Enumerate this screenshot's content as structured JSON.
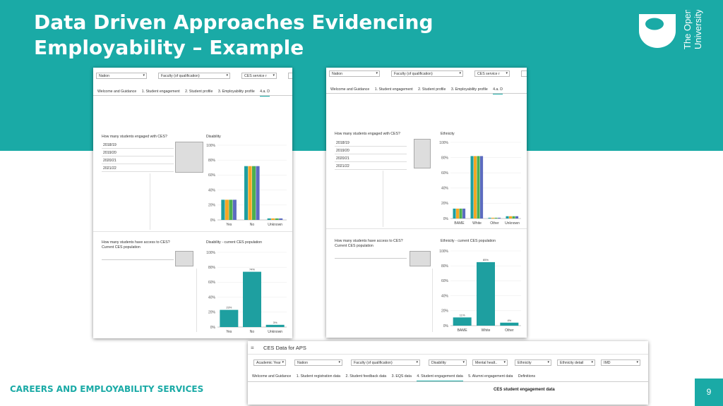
{
  "slide": {
    "title_line1": "Data Driven Approaches Evidencing",
    "title_line2": "Employability – Example",
    "logo_line1": "The Open",
    "logo_line2": "University",
    "footer": "CAREERS AND EMPLOYABILITY SERVICES",
    "page_number": "9",
    "colors": {
      "teal": "#1aaaa6",
      "bar_teal": "#1e9fa0",
      "bar_green": "#4caf50",
      "bar_orange": "#f5a623",
      "bar_blue": "#5c6bc0"
    }
  },
  "left_panel": {
    "filters": [
      "Nation",
      "Faculty (of qualification)",
      "CES service r"
    ],
    "tabs": [
      "Welcome and Guidance",
      "1. Student engagement",
      "2. Student profile",
      "3. Employability profile",
      "4.a. D"
    ],
    "engaged_title": "How many students engaged with CES?",
    "years": [
      "2018/19",
      "2019/20",
      "2020/21",
      "2021/22"
    ],
    "chart1_title": "Disability",
    "access_title1": "How many students have access to CES?",
    "access_title2": "Current CES population",
    "chart2_title": "Disability - current CES population"
  },
  "right_panel": {
    "filters": [
      "Nation",
      "Faculty (of qualification)",
      "CES service r"
    ],
    "tabs": [
      "Welcome and Guidance",
      "1. Student engagement",
      "2. Student profile",
      "3. Employability profile",
      "4.a. D"
    ],
    "engaged_title": "How many students engaged with CES?",
    "years": [
      "2018/19",
      "2019/20",
      "2020/21",
      "2021/22"
    ],
    "chart1_title": "Ethnicity",
    "access_title1": "How many students have access to CES?",
    "access_title2": "Current CES population",
    "chart2_title": "Ethnicity - current CES population"
  },
  "bottom_panel": {
    "app_title": "CES Data for APS",
    "filters": [
      "Academic Year",
      "Nation",
      "Faculty (of qualification)",
      "Disability",
      "Mental healt..",
      "Ethnicity",
      "Ethnicity detail",
      "IMD"
    ],
    "tabs": [
      "Welcome and Guidance",
      "1. Student registration data",
      "2. Student feedback data",
      "3. EQS data",
      "4. Student engagement data",
      "5. Alumni engagement data",
      "Definitions"
    ],
    "section_title": "CES student engagement data"
  },
  "chart_data": [
    {
      "type": "bar",
      "title": "Disability",
      "categories": [
        "Yes",
        "No",
        "Unknown"
      ],
      "series_colors": [
        "#1e9fa0",
        "#f5a623",
        "#4caf50",
        "#5c6bc0"
      ],
      "series": [
        {
          "values": [
            27,
            72,
            2
          ]
        },
        {
          "values": [
            27,
            72,
            2
          ]
        },
        {
          "values": [
            27,
            72,
            2
          ]
        },
        {
          "values": [
            27,
            72,
            2
          ]
        }
      ],
      "yticks": [
        "0%",
        "20%",
        "40%",
        "60%",
        "80%",
        "100%"
      ],
      "ylim": [
        0,
        100
      ]
    },
    {
      "type": "bar",
      "title": "Disability - current CES population",
      "categories": [
        "Yes",
        "No",
        "Unknown"
      ],
      "values": [
        23,
        74,
        3
      ],
      "data_labels": [
        "23%",
        "74%",
        "3%"
      ],
      "yticks": [
        "0%",
        "20%",
        "40%",
        "60%",
        "80%",
        "100%"
      ],
      "ylim": [
        0,
        100
      ]
    },
    {
      "type": "bar",
      "title": "Ethnicity",
      "categories": [
        "BAME",
        "White",
        "Other",
        "Unknown"
      ],
      "series_colors": [
        "#1e9fa0",
        "#f5a623",
        "#4caf50",
        "#5c6bc0"
      ],
      "series": [
        {
          "values": [
            13,
            82,
            1,
            3
          ]
        },
        {
          "values": [
            13,
            82,
            1,
            3
          ]
        },
        {
          "values": [
            13,
            82,
            1,
            3
          ]
        },
        {
          "values": [
            13,
            82,
            1,
            3
          ]
        }
      ],
      "yticks": [
        "0%",
        "20%",
        "40%",
        "60%",
        "80%",
        "100%"
      ],
      "ylim": [
        0,
        100
      ]
    },
    {
      "type": "bar",
      "title": "Ethnicity - current CES population",
      "categories": [
        "BAME",
        "White",
        "Other"
      ],
      "values": [
        11,
        85,
        4
      ],
      "data_labels": [
        "11%",
        "85%",
        "4%"
      ],
      "yticks": [
        "0%",
        "20%",
        "40%",
        "60%",
        "80%",
        "100%"
      ],
      "ylim": [
        0,
        100
      ]
    }
  ]
}
